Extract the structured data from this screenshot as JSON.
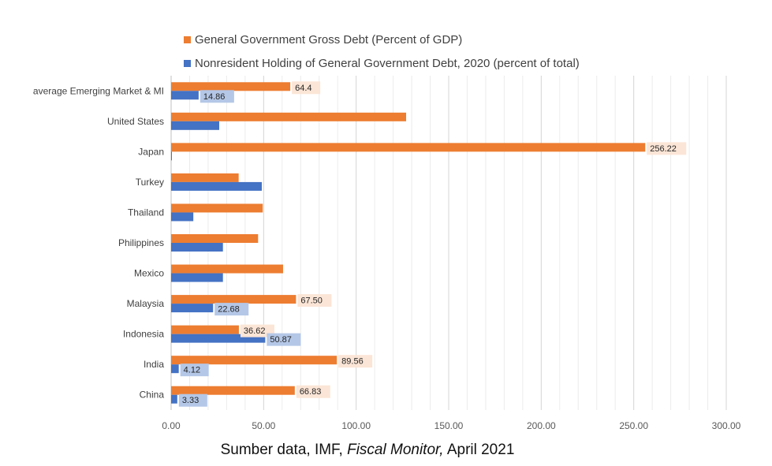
{
  "chart_data": {
    "type": "bar",
    "orientation": "horizontal",
    "categories": [
      "average Emerging Market & MI",
      "United States",
      "Japan",
      "Turkey",
      "Thailand",
      "Philippines",
      "Mexico",
      "Malaysia",
      "Indonesia",
      "India",
      "China"
    ],
    "series": [
      {
        "name": "General Government Gross Debt (Percent of GDP)",
        "color": "#ED7D31",
        "values": [
          64.4,
          127,
          256.22,
          36.5,
          49.5,
          47,
          60.5,
          67.5,
          36.62,
          89.56,
          66.83
        ],
        "labels": [
          "64.4",
          null,
          "256.22",
          null,
          null,
          null,
          null,
          "67.50",
          "36.62",
          "89.56",
          "66.83"
        ]
      },
      {
        "name": "Nonresident Holding of General Government Debt,  2020  (percent of total)",
        "color": "#4472C4",
        "values": [
          14.86,
          26,
          0.3,
          49,
          12,
          28,
          28,
          22.68,
          50.87,
          4.12,
          3.33
        ],
        "labels": [
          "14.86",
          null,
          null,
          null,
          null,
          null,
          null,
          "22.68",
          "50.87",
          "4.12",
          "3.33"
        ]
      }
    ],
    "xlim": [
      0,
      300
    ],
    "x_ticks": [
      "0.00",
      "50.00",
      "100.00",
      "150.00",
      "200.00",
      "250.00",
      "300.00"
    ],
    "grid": true,
    "legend_position": "top"
  },
  "caption": {
    "prefix": "Sumber data, IMF, ",
    "italic": "Fiscal Monitor,",
    "suffix": " April 2021"
  }
}
